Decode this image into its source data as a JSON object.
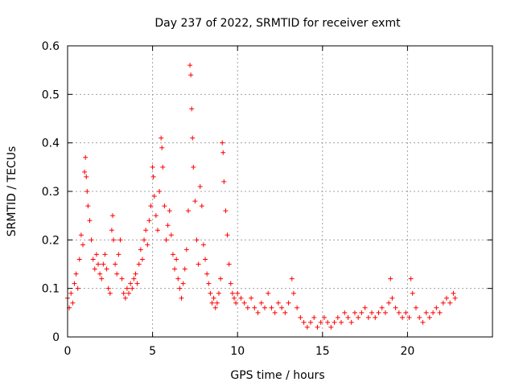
{
  "chart_data": {
    "type": "scatter",
    "title": "Day 237 of 2022, SRMTID for receiver exmt",
    "xlabel": "GPS time / hours",
    "ylabel": "SRMTID / TECUs",
    "xlim": [
      0,
      25
    ],
    "ylim": [
      0,
      0.6
    ],
    "xticks": [
      0,
      5,
      10,
      15,
      20
    ],
    "yticks": [
      0,
      0.1,
      0.2,
      0.3,
      0.4,
      0.5,
      0.6
    ],
    "xtick_labels": [
      "0",
      "5",
      "10",
      "15",
      "20"
    ],
    "ytick_labels": [
      "0",
      "0.1",
      "0.2",
      "0.3",
      "0.4",
      "0.5",
      "0.6"
    ],
    "grid": true,
    "marker": "+",
    "color": "#ff0000",
    "series": [
      {
        "name": "SRMTID",
        "points": [
          [
            0.0,
            0.08
          ],
          [
            0.1,
            0.06
          ],
          [
            0.2,
            0.09
          ],
          [
            0.3,
            0.07
          ],
          [
            0.4,
            0.11
          ],
          [
            0.5,
            0.13
          ],
          [
            0.6,
            0.1
          ],
          [
            0.7,
            0.16
          ],
          [
            0.8,
            0.21
          ],
          [
            0.9,
            0.19
          ],
          [
            1.0,
            0.34
          ],
          [
            1.05,
            0.37
          ],
          [
            1.1,
            0.33
          ],
          [
            1.15,
            0.3
          ],
          [
            1.2,
            0.27
          ],
          [
            1.3,
            0.24
          ],
          [
            1.4,
            0.2
          ],
          [
            1.5,
            0.16
          ],
          [
            1.6,
            0.14
          ],
          [
            1.7,
            0.17
          ],
          [
            1.8,
            0.15
          ],
          [
            1.9,
            0.13
          ],
          [
            2.0,
            0.12
          ],
          [
            2.1,
            0.15
          ],
          [
            2.2,
            0.17
          ],
          [
            2.3,
            0.14
          ],
          [
            2.4,
            0.1
          ],
          [
            2.5,
            0.09
          ],
          [
            2.6,
            0.22
          ],
          [
            2.65,
            0.25
          ],
          [
            2.7,
            0.2
          ],
          [
            2.8,
            0.15
          ],
          [
            2.9,
            0.13
          ],
          [
            3.0,
            0.17
          ],
          [
            3.1,
            0.2
          ],
          [
            3.2,
            0.12
          ],
          [
            3.3,
            0.09
          ],
          [
            3.4,
            0.08
          ],
          [
            3.5,
            0.1
          ],
          [
            3.6,
            0.09
          ],
          [
            3.7,
            0.11
          ],
          [
            3.8,
            0.1
          ],
          [
            3.9,
            0.12
          ],
          [
            4.0,
            0.13
          ],
          [
            4.1,
            0.11
          ],
          [
            4.2,
            0.15
          ],
          [
            4.3,
            0.18
          ],
          [
            4.4,
            0.16
          ],
          [
            4.5,
            0.2
          ],
          [
            4.6,
            0.22
          ],
          [
            4.7,
            0.19
          ],
          [
            4.8,
            0.24
          ],
          [
            4.9,
            0.27
          ],
          [
            5.0,
            0.35
          ],
          [
            5.05,
            0.33
          ],
          [
            5.1,
            0.29
          ],
          [
            5.2,
            0.25
          ],
          [
            5.3,
            0.22
          ],
          [
            5.4,
            0.3
          ],
          [
            5.5,
            0.41
          ],
          [
            5.55,
            0.39
          ],
          [
            5.6,
            0.35
          ],
          [
            5.7,
            0.27
          ],
          [
            5.8,
            0.2
          ],
          [
            5.9,
            0.23
          ],
          [
            6.0,
            0.26
          ],
          [
            6.1,
            0.21
          ],
          [
            6.2,
            0.17
          ],
          [
            6.3,
            0.14
          ],
          [
            6.4,
            0.16
          ],
          [
            6.5,
            0.12
          ],
          [
            6.6,
            0.1
          ],
          [
            6.7,
            0.08
          ],
          [
            6.8,
            0.11
          ],
          [
            6.9,
            0.14
          ],
          [
            7.0,
            0.18
          ],
          [
            7.1,
            0.26
          ],
          [
            7.2,
            0.56
          ],
          [
            7.25,
            0.54
          ],
          [
            7.3,
            0.47
          ],
          [
            7.35,
            0.41
          ],
          [
            7.4,
            0.35
          ],
          [
            7.5,
            0.28
          ],
          [
            7.6,
            0.2
          ],
          [
            7.7,
            0.15
          ],
          [
            7.8,
            0.31
          ],
          [
            7.9,
            0.27
          ],
          [
            8.0,
            0.19
          ],
          [
            8.1,
            0.16
          ],
          [
            8.2,
            0.13
          ],
          [
            8.3,
            0.11
          ],
          [
            8.4,
            0.09
          ],
          [
            8.5,
            0.07
          ],
          [
            8.6,
            0.08
          ],
          [
            8.7,
            0.06
          ],
          [
            8.8,
            0.07
          ],
          [
            8.9,
            0.09
          ],
          [
            9.0,
            0.12
          ],
          [
            9.1,
            0.4
          ],
          [
            9.15,
            0.38
          ],
          [
            9.2,
            0.32
          ],
          [
            9.3,
            0.26
          ],
          [
            9.4,
            0.21
          ],
          [
            9.5,
            0.15
          ],
          [
            9.6,
            0.11
          ],
          [
            9.7,
            0.09
          ],
          [
            9.8,
            0.08
          ],
          [
            9.9,
            0.07
          ],
          [
            10.0,
            0.09
          ],
          [
            10.2,
            0.08
          ],
          [
            10.4,
            0.07
          ],
          [
            10.6,
            0.06
          ],
          [
            10.8,
            0.08
          ],
          [
            11.0,
            0.06
          ],
          [
            11.2,
            0.05
          ],
          [
            11.4,
            0.07
          ],
          [
            11.6,
            0.06
          ],
          [
            11.8,
            0.09
          ],
          [
            12.0,
            0.06
          ],
          [
            12.2,
            0.05
          ],
          [
            12.4,
            0.07
          ],
          [
            12.6,
            0.06
          ],
          [
            12.8,
            0.05
          ],
          [
            13.0,
            0.07
          ],
          [
            13.2,
            0.12
          ],
          [
            13.3,
            0.09
          ],
          [
            13.5,
            0.06
          ],
          [
            13.7,
            0.04
          ],
          [
            13.9,
            0.03
          ],
          [
            14.1,
            0.02
          ],
          [
            14.3,
            0.03
          ],
          [
            14.5,
            0.04
          ],
          [
            14.7,
            0.02
          ],
          [
            14.9,
            0.03
          ],
          [
            15.1,
            0.04
          ],
          [
            15.3,
            0.03
          ],
          [
            15.5,
            0.02
          ],
          [
            15.7,
            0.03
          ],
          [
            15.9,
            0.04
          ],
          [
            16.1,
            0.03
          ],
          [
            16.3,
            0.05
          ],
          [
            16.5,
            0.04
          ],
          [
            16.7,
            0.03
          ],
          [
            16.9,
            0.05
          ],
          [
            17.1,
            0.04
          ],
          [
            17.3,
            0.05
          ],
          [
            17.5,
            0.06
          ],
          [
            17.7,
            0.04
          ],
          [
            17.9,
            0.05
          ],
          [
            18.1,
            0.04
          ],
          [
            18.3,
            0.05
          ],
          [
            18.5,
            0.06
          ],
          [
            18.7,
            0.05
          ],
          [
            18.9,
            0.07
          ],
          [
            19.0,
            0.12
          ],
          [
            19.1,
            0.08
          ],
          [
            19.3,
            0.06
          ],
          [
            19.5,
            0.05
          ],
          [
            19.7,
            0.04
          ],
          [
            19.9,
            0.05
          ],
          [
            20.1,
            0.04
          ],
          [
            20.2,
            0.12
          ],
          [
            20.3,
            0.09
          ],
          [
            20.5,
            0.06
          ],
          [
            20.7,
            0.04
          ],
          [
            20.9,
            0.03
          ],
          [
            21.1,
            0.05
          ],
          [
            21.3,
            0.04
          ],
          [
            21.5,
            0.05
          ],
          [
            21.7,
            0.06
          ],
          [
            21.9,
            0.05
          ],
          [
            22.1,
            0.07
          ],
          [
            22.3,
            0.08
          ],
          [
            22.5,
            0.07
          ],
          [
            22.7,
            0.09
          ],
          [
            22.8,
            0.08
          ]
        ]
      }
    ]
  }
}
